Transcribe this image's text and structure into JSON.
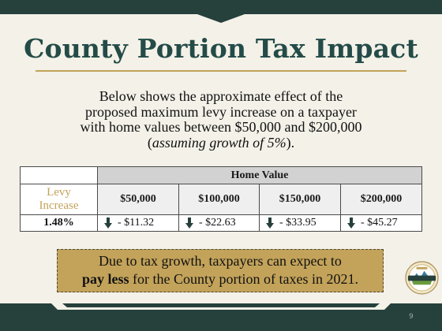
{
  "title": "County Portion Tax Impact",
  "subtitle": {
    "line1": "Below shows the approximate effect of the",
    "line2": "proposed maximum levy increase on a taxpayer",
    "line3": "with home values between $50,000 and $200,000",
    "line4_open": "(",
    "line4_italic": "assuming growth of 5%",
    "line4_close": ")."
  },
  "table": {
    "group_header": "Home Value",
    "row_header_line1": "Levy",
    "row_header_line2": "Increase",
    "columns": [
      "$50,000",
      "$100,000",
      "$150,000",
      "$200,000"
    ],
    "rate": "1.48%",
    "changes": [
      "- $11.32",
      "- $22.63",
      "- $33.95",
      "- $45.27"
    ],
    "change_icon": "down-arrow-icon"
  },
  "callout": {
    "line1": "Due to tax growth, taxpayers can expect to",
    "bold": "pay less",
    "line2_rest": " for the County portion of taxes in 2021."
  },
  "seal": {
    "top_text": "COUNTY OF",
    "band_text": "SAINT LOUIS"
  },
  "page_number": "9",
  "colors": {
    "brand_dark": "#26403c",
    "title_teal": "#244b48",
    "gold": "#c3a35a",
    "background": "#f3f1e8"
  }
}
